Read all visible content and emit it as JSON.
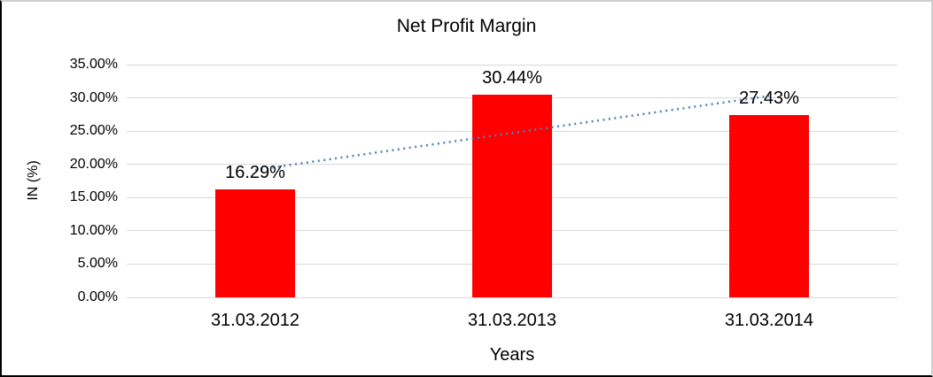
{
  "chart_data": {
    "type": "bar",
    "title": "Net Profit Margin",
    "xlabel": "Years",
    "ylabel": "IN (%)",
    "categories": [
      "31.03.2012",
      "31.03.2013",
      "31.03.2014"
    ],
    "series": [
      {
        "name": "Net Profit Margin",
        "values": [
          16.29,
          30.44,
          27.43
        ]
      }
    ],
    "data_labels": [
      "16.29%",
      "30.44%",
      "27.43%"
    ],
    "ylim": [
      0,
      35
    ],
    "yticks": [
      0,
      5,
      10,
      15,
      20,
      25,
      30,
      35
    ],
    "ytick_labels": [
      "0.00%",
      "5.00%",
      "10.00%",
      "15.00%",
      "20.00%",
      "25.00%",
      "30.00%",
      "35.00%"
    ],
    "grid": true,
    "legend": false,
    "bar_color": "#ff0000",
    "gridline_color": "#d9d9d9",
    "trendline": {
      "type": "linear",
      "style": "dotted",
      "color": "#4e81bd",
      "start_pct": 19.15,
      "end_pct": 30.29
    }
  }
}
